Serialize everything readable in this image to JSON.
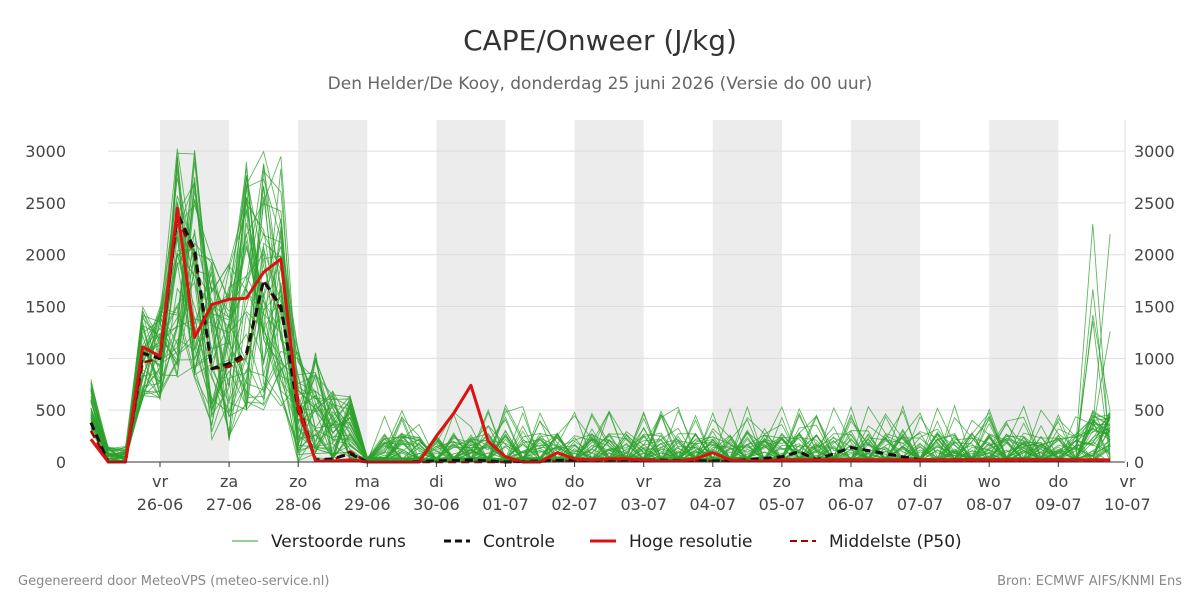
{
  "chart_data": {
    "type": "line",
    "title": "CAPE/Onweer (J/kg)",
    "subtitle": "Den Helder/De Kooy, donderdag 25 juni 2026 (Versie do 00 uur)",
    "xlabel": "",
    "ylabel": "",
    "ylim": [
      0,
      3300
    ],
    "yticks": [
      0,
      500,
      1000,
      1500,
      2000,
      2500,
      3000
    ],
    "grid": true,
    "legend_position": "bottom",
    "x_start": "2026-06-25T00:00",
    "x_end": "2026-07-10T00:00",
    "x_ticks": [
      {
        "day": "vr",
        "date": "26-06"
      },
      {
        "day": "za",
        "date": "27-06"
      },
      {
        "day": "zo",
        "date": "28-06"
      },
      {
        "day": "ma",
        "date": "29-06"
      },
      {
        "day": "di",
        "date": "30-06"
      },
      {
        "day": "wo",
        "date": "01-07"
      },
      {
        "day": "do",
        "date": "02-07"
      },
      {
        "day": "vr",
        "date": "03-07"
      },
      {
        "day": "za",
        "date": "04-07"
      },
      {
        "day": "zo",
        "date": "05-07"
      },
      {
        "day": "ma",
        "date": "06-07"
      },
      {
        "day": "di",
        "date": "07-07"
      },
      {
        "day": "wo",
        "date": "08-07"
      },
      {
        "day": "do",
        "date": "09-07"
      },
      {
        "day": "vr",
        "date": "10-07"
      }
    ],
    "shaded_days": [
      "26-06",
      "28-06",
      "30-06",
      "02-07",
      "04-07",
      "06-07",
      "08-07"
    ],
    "colors": {
      "ensemble": "#2ca02c",
      "control": "#111111",
      "high_res": "#dd1111",
      "median": "#a50000",
      "shade": "#ececec",
      "grid": "#dddddd"
    },
    "series": [
      {
        "name": "Controle",
        "x": [
          0,
          0.25,
          0.5,
          0.75,
          1.0,
          1.25,
          1.5,
          1.75,
          2.0,
          2.25,
          2.5,
          2.75,
          3.0,
          3.25,
          3.5,
          3.75,
          4.0,
          4.5,
          5.0,
          5.5,
          6.0,
          6.5,
          7.0,
          8.0,
          9.0,
          9.5,
          10.0,
          10.25,
          10.5,
          11.0,
          12.0,
          13.0,
          14.0,
          14.75
        ],
        "values": [
          380,
          0,
          0,
          1050,
          1000,
          2400,
          2050,
          900,
          950,
          1050,
          1750,
          1500,
          500,
          20,
          30,
          80,
          0,
          0,
          10,
          20,
          0,
          10,
          20,
          20,
          10,
          20,
          50,
          100,
          20,
          140,
          20,
          20,
          20,
          20
        ]
      },
      {
        "name": "Hoge resolutie",
        "x": [
          0,
          0.25,
          0.5,
          0.75,
          1.0,
          1.25,
          1.5,
          1.75,
          2.0,
          2.25,
          2.5,
          2.75,
          3.0,
          3.25,
          3.5,
          3.75,
          4.0,
          4.25,
          4.5,
          4.75,
          5.0,
          5.25,
          5.5,
          5.75,
          6.0,
          6.25,
          6.5,
          6.75,
          7.0,
          7.25,
          7.5,
          7.75,
          8.0,
          8.25,
          8.5,
          8.75,
          9.0,
          9.25,
          9.5,
          9.75,
          10.0,
          10.5,
          11.0,
          12.0,
          13.0,
          14.0,
          14.75
        ],
        "values": [
          220,
          0,
          0,
          1110,
          1020,
          2450,
          1200,
          1520,
          1570,
          1580,
          1830,
          1960,
          520,
          10,
          10,
          20,
          0,
          0,
          0,
          0,
          250,
          470,
          740,
          200,
          50,
          0,
          0,
          90,
          30,
          20,
          30,
          30,
          20,
          10,
          10,
          30,
          90,
          20,
          10,
          10,
          20,
          20,
          20,
          20,
          20,
          20,
          20
        ]
      },
      {
        "name": "Middelste (P50)",
        "x": [
          0,
          0.25,
          0.5,
          0.75,
          1.0,
          1.25,
          1.5,
          1.75,
          2.0,
          2.25,
          2.5,
          2.75,
          3.0,
          3.25,
          3.5,
          3.75,
          4.0,
          5.0,
          6.0,
          7.0,
          8.0,
          9.0,
          10.0,
          11.0,
          12.0,
          13.0,
          14.0,
          14.75
        ],
        "values": [
          300,
          0,
          0,
          960,
          1000,
          2350,
          2000,
          900,
          920,
          1020,
          1750,
          1470,
          600,
          10,
          20,
          100,
          0,
          0,
          0,
          10,
          10,
          10,
          10,
          10,
          10,
          10,
          20,
          20
        ]
      }
    ],
    "ensemble": {
      "name": "Verstoorde runs",
      "member_count": 50
    }
  },
  "legend": {
    "ensemble": "Verstoorde runs",
    "control": "Controle",
    "high_res": "Hoge resolutie",
    "median": "Middelste (P50)"
  },
  "footer": {
    "left": "Gegenereerd door MeteoVPS (meteo-service.nl)",
    "right": "Bron: ECMWF AIFS/KNMI Ens"
  }
}
